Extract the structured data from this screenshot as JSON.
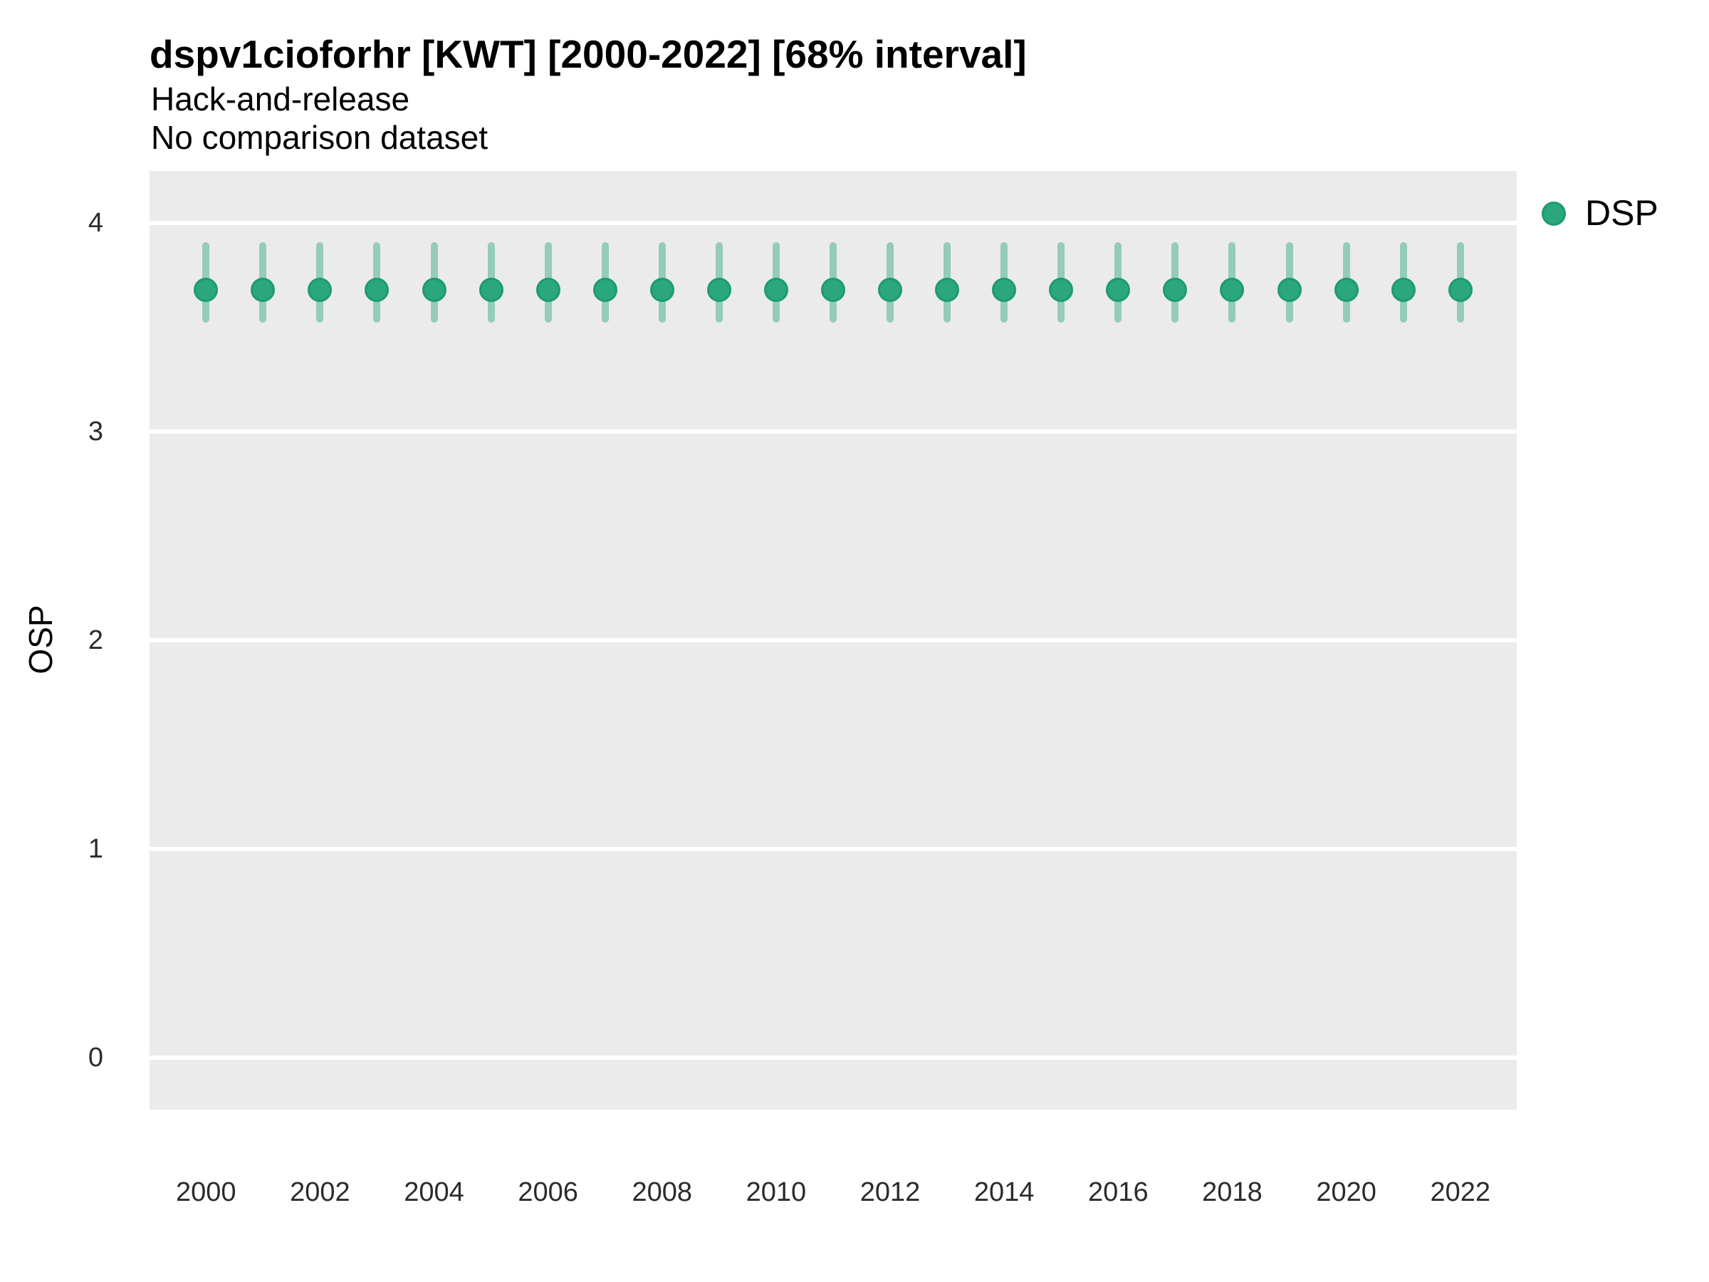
{
  "header": {
    "title": "dspv1cioforhr [KWT] [2000-2022] [68% interval]",
    "subtitle_line1": "Hack-and-release",
    "subtitle_line2": "No comparison dataset"
  },
  "legend": {
    "position": "right-top",
    "items": [
      {
        "label": "DSP",
        "marker": "circle-icon",
        "color": "#2aa77c"
      }
    ]
  },
  "chart_data": {
    "type": "pointrange",
    "title": "dspv1cioforhr [KWT] [2000-2022] [68% interval]",
    "subtitle": [
      "Hack-and-release",
      "No comparison dataset"
    ],
    "xlabel": "",
    "ylabel": "OSP",
    "interval_note": "68% interval",
    "x": [
      2000,
      2001,
      2002,
      2003,
      2004,
      2005,
      2006,
      2007,
      2008,
      2009,
      2010,
      2011,
      2012,
      2013,
      2014,
      2015,
      2016,
      2017,
      2018,
      2019,
      2020,
      2021,
      2022
    ],
    "series": [
      {
        "name": "DSP",
        "point": [
          3.68,
          3.68,
          3.68,
          3.68,
          3.68,
          3.68,
          3.68,
          3.68,
          3.68,
          3.68,
          3.68,
          3.68,
          3.68,
          3.68,
          3.68,
          3.68,
          3.68,
          3.68,
          3.68,
          3.68,
          3.68,
          3.68,
          3.68
        ],
        "lower": [
          3.54,
          3.54,
          3.54,
          3.54,
          3.54,
          3.54,
          3.54,
          3.54,
          3.54,
          3.54,
          3.54,
          3.54,
          3.54,
          3.54,
          3.54,
          3.54,
          3.54,
          3.54,
          3.54,
          3.54,
          3.54,
          3.54,
          3.54
        ],
        "upper": [
          3.89,
          3.89,
          3.89,
          3.89,
          3.89,
          3.89,
          3.89,
          3.89,
          3.89,
          3.89,
          3.89,
          3.89,
          3.89,
          3.89,
          3.89,
          3.89,
          3.89,
          3.89,
          3.89,
          3.89,
          3.89,
          3.89,
          3.89
        ]
      }
    ],
    "x_ticks": [
      2000,
      2002,
      2004,
      2006,
      2008,
      2010,
      2012,
      2014,
      2016,
      2018,
      2020,
      2022
    ],
    "y_ticks": [
      0,
      1,
      2,
      3,
      4
    ],
    "xlim": [
      1999.01,
      2022.99
    ],
    "ylim": [
      -0.25,
      4.25
    ],
    "grid": "horizontal-major-only",
    "legend_position": "right-top",
    "colors": {
      "point": "#2aa77c",
      "point_border": "#1e9b6e",
      "interval": "#2aa77c",
      "interval_opacity": 0.45,
      "panel_bg": "#ebebeb",
      "grid": "#ffffff",
      "title": "#000000",
      "axis_text": "#2b2b2b"
    }
  }
}
